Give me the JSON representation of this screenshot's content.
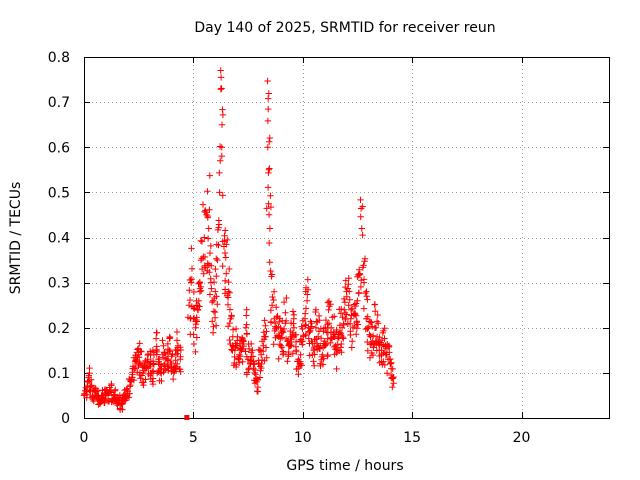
{
  "chart_data": {
    "type": "scatter",
    "title": "Day 140 of 2025, SRMTID for receiver reun",
    "xlabel": "GPS time / hours",
    "ylabel": "SRMTID / TECUs",
    "xlim": [
      0,
      24
    ],
    "ylim": [
      0,
      0.8
    ],
    "xticks": [
      0,
      5,
      10,
      15,
      20
    ],
    "xtick_labels": [
      "0",
      "5",
      "10",
      "15",
      "20"
    ],
    "yticks": [
      0,
      0.1,
      0.2,
      0.3,
      0.4,
      0.5,
      0.6,
      0.7,
      0.8
    ],
    "ytick_labels": [
      "0",
      "0.1",
      "0.2",
      "0.3",
      "0.4",
      "0.5",
      "0.6",
      "0.7",
      "0.8"
    ],
    "grid": true,
    "marker": "plus",
    "color": "#ff0000",
    "series": [
      {
        "name": "SRMTID",
        "x": [
          0.0,
          0.1,
          0.2,
          0.3,
          0.4,
          0.5,
          0.6,
          0.7,
          0.8,
          0.9,
          1.0,
          1.1,
          1.2,
          1.3,
          1.4,
          1.5,
          1.6,
          1.7,
          1.8,
          1.9,
          2.0,
          2.1,
          2.2,
          2.3,
          2.4,
          2.5,
          2.6,
          2.7,
          2.8,
          2.9,
          3.0,
          3.1,
          3.2,
          3.3,
          3.4,
          3.5,
          3.6,
          3.7,
          3.8,
          3.9,
          4.0,
          4.1,
          4.2,
          4.3,
          4.4,
          4.8,
          4.9,
          5.0,
          5.1,
          5.2,
          5.3,
          5.4,
          5.5,
          5.6,
          5.7,
          5.8,
          5.9,
          6.0,
          6.1,
          6.2,
          6.25,
          6.3,
          6.4,
          6.5,
          6.6,
          6.7,
          6.8,
          6.9,
          7.0,
          7.1,
          7.2,
          7.3,
          7.4,
          7.5,
          7.6,
          7.7,
          7.8,
          7.9,
          8.0,
          8.1,
          8.2,
          8.3,
          8.4,
          8.45,
          8.5,
          8.6,
          8.7,
          8.8,
          8.9,
          9.0,
          9.1,
          9.2,
          9.3,
          9.4,
          9.5,
          9.6,
          9.7,
          9.8,
          9.9,
          10.0,
          10.1,
          10.2,
          10.3,
          10.4,
          10.5,
          10.6,
          10.7,
          10.8,
          10.9,
          11.0,
          11.1,
          11.2,
          11.3,
          11.4,
          11.5,
          11.6,
          11.7,
          11.8,
          11.9,
          12.0,
          12.1,
          12.2,
          12.3,
          12.4,
          12.5,
          12.6,
          12.7,
          12.8,
          12.9,
          13.0,
          13.1,
          13.2,
          13.3,
          13.4,
          13.5,
          13.6,
          13.7,
          13.8,
          13.9,
          14.0,
          14.1
        ],
        "y": [
          0.05,
          0.06,
          0.09,
          0.07,
          0.05,
          0.06,
          0.05,
          0.04,
          0.05,
          0.04,
          0.05,
          0.05,
          0.06,
          0.04,
          0.05,
          0.04,
          0.04,
          0.03,
          0.04,
          0.05,
          0.06,
          0.07,
          0.09,
          0.11,
          0.13,
          0.14,
          0.12,
          0.1,
          0.11,
          0.13,
          0.12,
          0.1,
          0.14,
          0.15,
          0.13,
          0.11,
          0.14,
          0.12,
          0.13,
          0.15,
          0.12,
          0.1,
          0.14,
          0.16,
          0.13,
          0.25,
          0.3,
          0.22,
          0.2,
          0.25,
          0.28,
          0.33,
          0.4,
          0.45,
          0.42,
          0.3,
          0.26,
          0.28,
          0.35,
          0.5,
          0.77,
          0.6,
          0.38,
          0.32,
          0.28,
          0.22,
          0.18,
          0.15,
          0.16,
          0.14,
          0.15,
          0.17,
          0.2,
          0.13,
          0.12,
          0.15,
          0.1,
          0.08,
          0.12,
          0.14,
          0.16,
          0.18,
          0.6,
          0.55,
          0.42,
          0.25,
          0.22,
          0.2,
          0.18,
          0.16,
          0.19,
          0.21,
          0.17,
          0.16,
          0.18,
          0.2,
          0.15,
          0.13,
          0.14,
          0.17,
          0.22,
          0.26,
          0.19,
          0.17,
          0.15,
          0.2,
          0.18,
          0.16,
          0.14,
          0.17,
          0.19,
          0.21,
          0.2,
          0.18,
          0.16,
          0.15,
          0.19,
          0.2,
          0.24,
          0.28,
          0.25,
          0.22,
          0.2,
          0.23,
          0.26,
          0.32,
          0.42,
          0.3,
          0.22,
          0.2,
          0.18,
          0.17,
          0.2,
          0.18,
          0.15,
          0.14,
          0.16,
          0.14,
          0.13,
          0.12,
          0.09
        ]
      }
    ],
    "outlier_marker": {
      "x": 4.7,
      "y": 0.0,
      "shape": "square"
    }
  }
}
